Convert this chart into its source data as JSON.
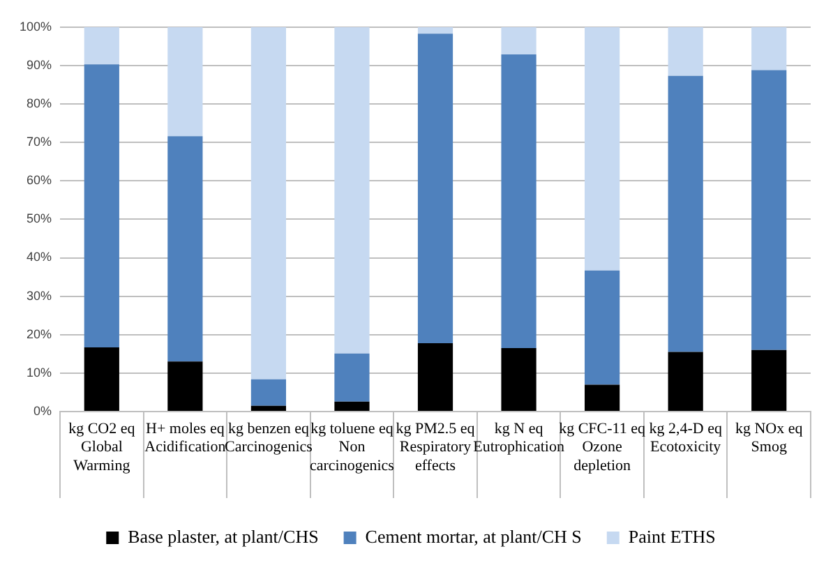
{
  "chart_data": {
    "type": "bar",
    "stacked": true,
    "categories": [
      "kg CO2 eq\nGlobal\nWarming",
      "H+ moles eq\nAcidification",
      "kg benzen eq\nCarcinogenics",
      "kg toluene eq\nNon\ncarcinogenics",
      "kg PM2.5 eq\nRespiratory\neffects",
      "kg N eq\nEutrophication",
      "kg CFC-11 eq\nOzone\ndepletion",
      "kg 2,4-D eq\nEcotoxicity",
      "kg NOx eq\nSmog"
    ],
    "series": [
      {
        "name": "Base plaster, at plant/CHS",
        "color": "#000000",
        "values": [
          16.7,
          13,
          1.5,
          2.6,
          17.8,
          16.5,
          7.0,
          15.5,
          16.0
        ]
      },
      {
        "name": "Cement mortar, at plant/CH S",
        "color": "#4f81bd",
        "values": [
          73.6,
          58.6,
          6.9,
          12.5,
          80.5,
          76.4,
          29.7,
          71.8,
          72.8
        ]
      },
      {
        "name": "Paint ETHS",
        "color": "#c6d9f1",
        "values": [
          9.7,
          28.4,
          91.6,
          84.9,
          1.7,
          7.1,
          63.3,
          12.7,
          11.2
        ]
      }
    ],
    "ylim": [
      0,
      100
    ],
    "yticks": [
      {
        "value": 0,
        "label": "0%"
      },
      {
        "value": 10,
        "label": "10%"
      },
      {
        "value": 20,
        "label": "20%"
      },
      {
        "value": 30,
        "label": "30%"
      },
      {
        "value": 40,
        "label": "40%"
      },
      {
        "value": 50,
        "label": "50%"
      },
      {
        "value": 60,
        "label": "60%"
      },
      {
        "value": 70,
        "label": "70%"
      },
      {
        "value": 80,
        "label": "80%"
      },
      {
        "value": 90,
        "label": "90%"
      },
      {
        "value": 100,
        "label": "100%"
      }
    ],
    "grid": "y",
    "legend": "bottom"
  }
}
